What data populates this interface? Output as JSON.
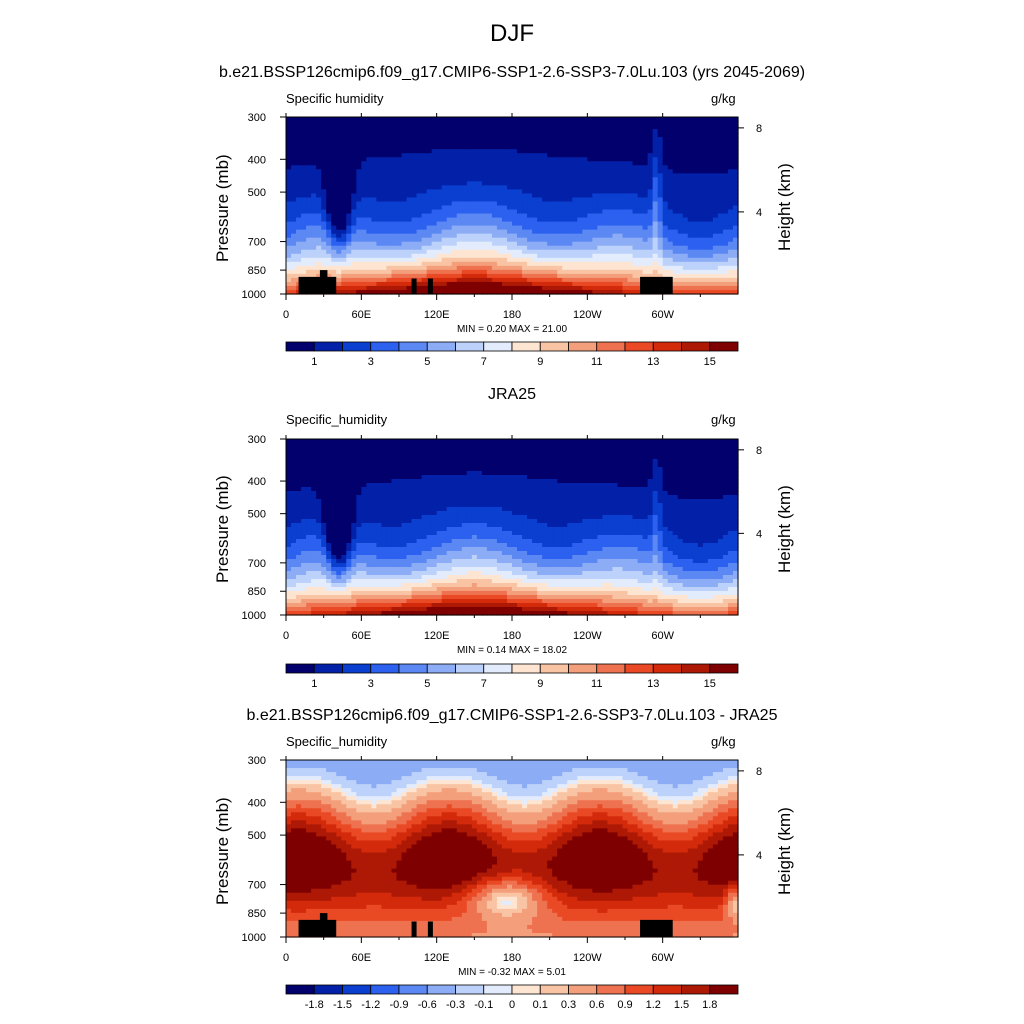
{
  "main_title": "DJF",
  "colors": {
    "abs_scale": [
      "#02006c",
      "#0221a8",
      "#0a3fd0",
      "#2c61f0",
      "#5b88f2",
      "#8cacf5",
      "#bdd2fa",
      "#e3ecfc",
      "#fde5d2",
      "#f9c4a4",
      "#f49f7b",
      "#ef7250",
      "#e94a25",
      "#d22a0b",
      "#ae1906",
      "#7f0000"
    ],
    "diff_scale": [
      "#02006c",
      "#0221a8",
      "#0a3fd0",
      "#2c61f0",
      "#5b88f2",
      "#8cacf5",
      "#bdd2fa",
      "#e3ecfc",
      "#fde5d2",
      "#f9c4a4",
      "#f49f7b",
      "#ef7250",
      "#e94a25",
      "#d22a0b",
      "#ae1906",
      "#7f0000"
    ]
  },
  "chart_data": [
    {
      "type": "heatmap",
      "title": "b.e21.BSSP126cmip6.f09_g17.CMIP6-SSP1-2.6-SSP3-7.0Lu.103 (yrs 2045-2069)",
      "left_label": "Specific humidity",
      "right_label": "g/kg",
      "ylabel": "Pressure (mb)",
      "y2label": "Height (km)",
      "xlabel": "",
      "x_ticks": [
        "0",
        "60E",
        "120E",
        "180",
        "120W",
        "60W"
      ],
      "x_tick_lons": [
        0,
        60,
        120,
        180,
        240,
        300
      ],
      "xlim": [
        0,
        360
      ],
      "y_ticks": [
        300,
        400,
        500,
        700,
        850,
        1000
      ],
      "ylim": [
        1000,
        300
      ],
      "y_scale": "log",
      "y2_ticks": [
        8,
        4
      ],
      "stats": "MIN =   0.20  MAX =  21.00",
      "min": 0.2,
      "max": 21.0,
      "colorbar": {
        "labels": [
          "1",
          "3",
          "5",
          "7",
          "9",
          "11",
          "13",
          "15"
        ],
        "bins": 16
      },
      "terrain": [
        [
          10,
          890,
          40
        ],
        [
          27,
          850,
          33
        ],
        [
          100,
          900,
          104
        ],
        [
          113,
          900,
          117
        ],
        [
          282,
          890,
          308
        ]
      ]
    },
    {
      "type": "heatmap",
      "title": "JRA25",
      "left_label": "Specific_humidity",
      "right_label": "g/kg",
      "ylabel": "Pressure (mb)",
      "y2label": "Height (km)",
      "xlabel": "",
      "x_ticks": [
        "0",
        "60E",
        "120E",
        "180",
        "120W",
        "60W"
      ],
      "x_tick_lons": [
        0,
        60,
        120,
        180,
        240,
        300
      ],
      "xlim": [
        0,
        360
      ],
      "y_ticks": [
        300,
        400,
        500,
        700,
        850,
        1000
      ],
      "ylim": [
        1000,
        300
      ],
      "y_scale": "log",
      "y2_ticks": [
        8,
        4
      ],
      "stats": "MIN =   0.14  MAX =  18.02",
      "min": 0.14,
      "max": 18.02,
      "colorbar": {
        "labels": [
          "1",
          "3",
          "5",
          "7",
          "9",
          "11",
          "13",
          "15"
        ],
        "bins": 16
      },
      "terrain": []
    },
    {
      "type": "heatmap",
      "title": "b.e21.BSSP126cmip6.f09_g17.CMIP6-SSP1-2.6-SSP3-7.0Lu.103 - JRA25",
      "left_label": "Specific_humidity",
      "right_label": "g/kg",
      "ylabel": "Pressure (mb)",
      "y2label": "Height (km)",
      "xlabel": "",
      "x_ticks": [
        "0",
        "60E",
        "120E",
        "180",
        "120W",
        "60W"
      ],
      "x_tick_lons": [
        0,
        60,
        120,
        180,
        240,
        300
      ],
      "xlim": [
        0,
        360
      ],
      "y_ticks": [
        300,
        400,
        500,
        700,
        850,
        1000
      ],
      "ylim": [
        1000,
        300
      ],
      "y_scale": "log",
      "y2_ticks": [
        8,
        4
      ],
      "stats": "MIN =  -0.32  MAX =   5.01",
      "min": -0.32,
      "max": 5.01,
      "colorbar": {
        "labels": [
          "-1.8",
          "-1.5",
          "-1.2",
          "-0.9",
          "-0.6",
          "-0.3",
          "-0.1",
          "0",
          "0.1",
          "0.3",
          "0.6",
          "0.9",
          "1.2",
          "1.5",
          "1.8"
        ],
        "bins": 16
      },
      "terrain": [
        [
          10,
          890,
          40
        ],
        [
          27,
          850,
          33
        ],
        [
          100,
          900,
          104
        ],
        [
          113,
          900,
          117
        ],
        [
          282,
          890,
          308
        ]
      ]
    }
  ]
}
